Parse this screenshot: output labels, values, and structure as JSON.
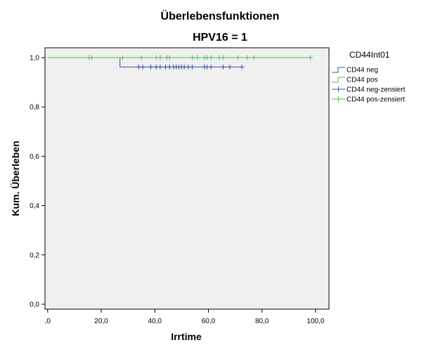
{
  "chart_data": {
    "type": "line",
    "title": "Überlebensfunktionen",
    "subtitle": "HPV16 = 1",
    "xlabel": "Irrtime",
    "ylabel": "Kum. Überleben",
    "xlim": [
      -1,
      105
    ],
    "ylim": [
      -0.02,
      1.04
    ],
    "x_ticks": [
      0,
      20,
      40,
      60,
      80,
      100
    ],
    "x_tick_labels": [
      ",0",
      "20,0",
      "40,0",
      "60,0",
      "80,0",
      "100,0"
    ],
    "y_ticks": [
      0,
      0.2,
      0.4,
      0.6,
      0.8,
      1.0
    ],
    "y_tick_labels": [
      "0,0",
      "0,2",
      "0,4",
      "0,6",
      "0,8",
      "1,0"
    ],
    "grid": false,
    "legend_position": "right",
    "legend_title": "CD44Int01",
    "legend_entries": [
      "CD44 neg",
      "CD44 pos",
      "CD44 neg-zensiert",
      "CD44 pos-zensiert"
    ],
    "series": [
      {
        "name": "CD44 neg",
        "color": "#3c4da3",
        "step_x": [
          0,
          27,
          27,
          72.5
        ],
        "step_y": [
          1.0,
          1.0,
          0.962,
          0.962
        ],
        "censored_x": [
          34,
          35.5,
          38.5,
          40.5,
          42,
          44,
          45.5,
          47,
          48,
          49,
          50,
          51,
          52.5,
          54,
          58.5,
          59.5,
          61,
          65.5,
          68,
          72.5
        ],
        "censored_y": 0.962
      },
      {
        "name": "CD44 pos",
        "color": "#4dbd4a",
        "step_x": [
          0,
          98
        ],
        "step_y": [
          1.0,
          1.0
        ],
        "censored_x": [
          15.5,
          16.5,
          28,
          35,
          40.5,
          42,
          44.5,
          45.5,
          54,
          56,
          58.5,
          59.5,
          61,
          64,
          65.5,
          71,
          74.5,
          77,
          98
        ],
        "censored_y": 1.0
      }
    ]
  }
}
